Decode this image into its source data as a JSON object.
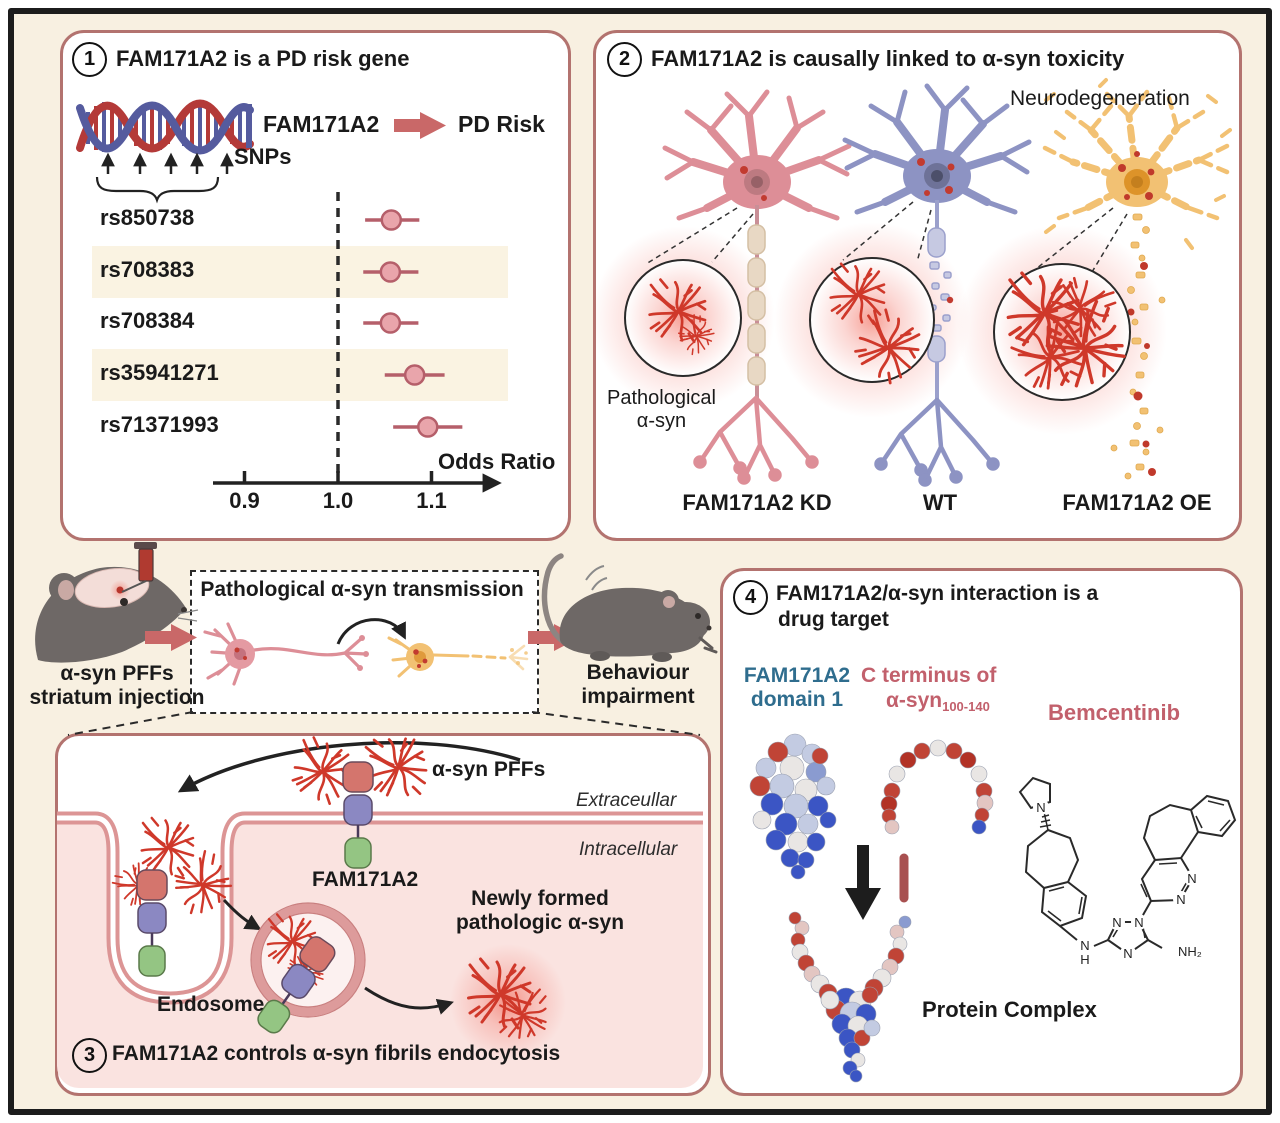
{
  "colors": {
    "background": "#f8f0e1",
    "frame_border": "#1c1c1c",
    "panel_border": "#b3736f",
    "panel3_fill": "#fae3e0",
    "accent_arrow": "#c96868",
    "forest_marker_fill": "#e9a5ab",
    "forest_marker_stroke": "#b55f6a",
    "row_band": "#faf3e2",
    "fibril_red": "#cf382a",
    "neuron_kd": "#dd8e97",
    "neuron_wt": "#8d93c3",
    "neuron_oe": "#f2c173",
    "teal_text": "#2f6d8e",
    "rose_text": "#c2606c"
  },
  "panel1": {
    "number": "1",
    "title": "FAM171A2 is a PD risk gene",
    "gene_label": "FAM171A2",
    "risk_label": "PD Risk",
    "snps_label": "SNPs",
    "axis_label": "Odds Ratio",
    "forest": {
      "type": "forest",
      "rows": [
        {
          "snp": "rs850738",
          "or": 1.057,
          "ci_low": 1.029,
          "ci_high": 1.087
        },
        {
          "snp": "rs708383",
          "or": 1.056,
          "ci_low": 1.027,
          "ci_high": 1.086
        },
        {
          "snp": "rs708384",
          "or": 1.056,
          "ci_low": 1.027,
          "ci_high": 1.086
        },
        {
          "snp": "rs35941271",
          "or": 1.082,
          "ci_low": 1.05,
          "ci_high": 1.114
        },
        {
          "snp": "rs71371993",
          "or": 1.096,
          "ci_low": 1.059,
          "ci_high": 1.133
        }
      ],
      "ticks": [
        {
          "label": "0.9",
          "value": 0.9
        },
        {
          "label": "1.0",
          "value": 1.0
        },
        {
          "label": "1.1",
          "value": 1.1
        }
      ],
      "ref_value": 1.0
    }
  },
  "panel2": {
    "number": "2",
    "title": "FAM171A2 is causally linked to α-syn toxicity",
    "neurodegeneration_label": "Neurodegeneration",
    "pathological_line1": "Pathological",
    "pathological_line2": "α-syn",
    "conditions": [
      "FAM171A2 KD",
      "WT",
      "FAM171A2 OE"
    ]
  },
  "middle": {
    "injection_line1": "α-syn PFFs",
    "injection_line2": "striatum injection",
    "transmission_title": "Pathological α-syn transmission",
    "behaviour_line1": "Behaviour",
    "behaviour_line2": "impairment"
  },
  "panel3": {
    "number": "3",
    "caption": "FAM171A2 controls α-syn fibrils endocytosis",
    "pffs_label": "α-syn PFFs",
    "extracellular_label": "Extraceullar",
    "intracellular_label": "Intracellular",
    "fam_label": "FAM171A2",
    "newly_line1": "Newly formed",
    "newly_line2": "pathologic α-syn",
    "endosome_label": "Endosome"
  },
  "panel4": {
    "number": "4",
    "title_line1": "FAM171A2/α-syn interaction is a",
    "title_line2": "drug target",
    "domain_line1": "FAM171A2",
    "domain_line2": "domain 1",
    "cterm_line1": "C terminus of",
    "cterm_base": "α-syn",
    "cterm_sub": "100-140",
    "drug_label": "Bemcentinib",
    "complex_label": "Protein Complex",
    "atoms": {
      "n_pyrrolidine": "N",
      "n_pyridazine1": "N",
      "n_pyridazine2": "N",
      "n_triazole1": "N",
      "n_triazole2": "N",
      "n_triazole3": "N",
      "nh_n": "N",
      "nh_h": "H",
      "nh2": "NH₂"
    }
  }
}
